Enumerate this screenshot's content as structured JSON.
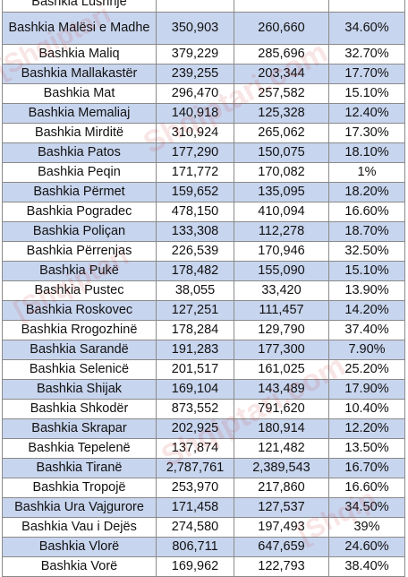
{
  "table": {
    "rows": [
      {
        "name": "Bashkia Lushnje",
        "v1": "",
        "v2": "",
        "pct": ""
      },
      {
        "name": "Bashkia Malësi e Madhe",
        "v1": "350,903",
        "v2": "260,660",
        "pct": "34.60%"
      },
      {
        "name": "Bashkia Maliq",
        "v1": "379,229",
        "v2": "285,696",
        "pct": "32.70%"
      },
      {
        "name": "Bashkia Mallakastër",
        "v1": "239,255",
        "v2": "203,344",
        "pct": "17.70%"
      },
      {
        "name": "Bashkia Mat",
        "v1": "296,470",
        "v2": "257,582",
        "pct": "15.10%"
      },
      {
        "name": "Bashkia Memaliaj",
        "v1": "140,918",
        "v2": "125,328",
        "pct": "12.40%"
      },
      {
        "name": "Bashkia Mirditë",
        "v1": "310,924",
        "v2": "265,062",
        "pct": "17.30%"
      },
      {
        "name": "Bashkia Patos",
        "v1": "177,290",
        "v2": "150,075",
        "pct": "18.10%"
      },
      {
        "name": "Bashkia Peqin",
        "v1": "171,772",
        "v2": "170,082",
        "pct": "1%"
      },
      {
        "name": "Bashkia Përmet",
        "v1": "159,652",
        "v2": "135,095",
        "pct": "18.20%"
      },
      {
        "name": "Bashkia Pogradec",
        "v1": "478,150",
        "v2": "410,094",
        "pct": "16.60%"
      },
      {
        "name": "Bashkia Poliçan",
        "v1": "133,308",
        "v2": "112,278",
        "pct": "18.70%"
      },
      {
        "name": "Bashkia Përrenjas",
        "v1": "226,539",
        "v2": "170,946",
        "pct": "32.50%"
      },
      {
        "name": "Bashkia Pukë",
        "v1": "178,482",
        "v2": "155,090",
        "pct": "15.10%"
      },
      {
        "name": "Bashkia Pustec",
        "v1": "38,055",
        "v2": "33,420",
        "pct": "13.90%"
      },
      {
        "name": "Bashkia Roskovec",
        "v1": "127,251",
        "v2": "111,457",
        "pct": "14.20%"
      },
      {
        "name": "Bashkia Rrogozhinë",
        "v1": "178,284",
        "v2": "129,790",
        "pct": "37.40%"
      },
      {
        "name": "Bashkia Sarandë",
        "v1": "191,283",
        "v2": "177,300",
        "pct": "7.90%"
      },
      {
        "name": "Bashkia Selenicë",
        "v1": "201,517",
        "v2": "161,025",
        "pct": "25.20%"
      },
      {
        "name": "Bashkia Shijak",
        "v1": "169,104",
        "v2": "143,489",
        "pct": "17.90%"
      },
      {
        "name": "Bashkia Shkodër",
        "v1": "873,552",
        "v2": "791,620",
        "pct": "10.40%"
      },
      {
        "name": "Bashkia Skrapar",
        "v1": "202,925",
        "v2": "180,914",
        "pct": "12.20%"
      },
      {
        "name": "Bashkia Tepelenë",
        "v1": "137,874",
        "v2": "121,482",
        "pct": "13.50%"
      },
      {
        "name": "Bashkia Tiranë",
        "v1": "2,787,761",
        "v2": "2,389,543",
        "pct": "16.70%"
      },
      {
        "name": "Bashkia Tropojë",
        "v1": "253,970",
        "v2": "217,860",
        "pct": "16.60%"
      },
      {
        "name": "Bashkia Ura Vajgurore",
        "v1": "171,458",
        "v2": "127,537",
        "pct": "34.50%"
      },
      {
        "name": "Bashkia Vau i Dejës",
        "v1": "274,580",
        "v2": "197,493",
        "pct": "39%"
      },
      {
        "name": "Bashkia Vlorë",
        "v1": "806,711",
        "v2": "647,659",
        "pct": "24.60%"
      },
      {
        "name": "Bashkia Vorë",
        "v1": "169,962",
        "v2": "122,793",
        "pct": "38.40%"
      }
    ]
  }
}
